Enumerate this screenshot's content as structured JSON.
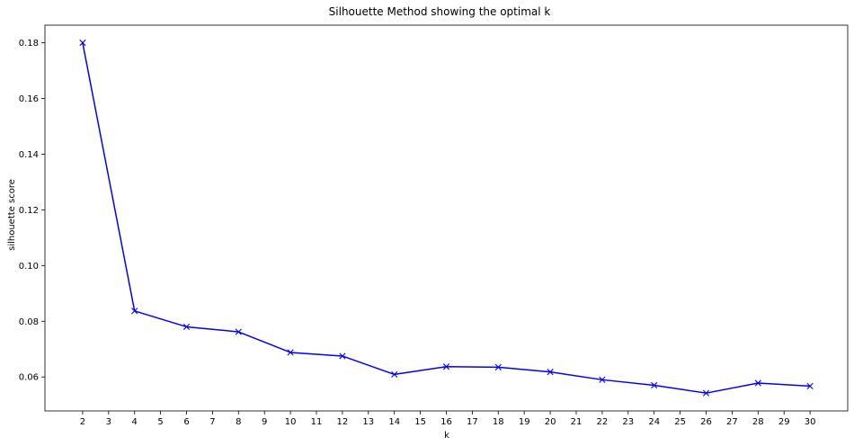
{
  "chart_data": {
    "type": "line",
    "title": "Silhouette Method showing the optimal k",
    "xlabel": "k",
    "ylabel": "silhouette score",
    "x_ticks": [
      2,
      3,
      4,
      5,
      6,
      7,
      8,
      9,
      10,
      11,
      12,
      13,
      14,
      15,
      16,
      17,
      18,
      19,
      20,
      21,
      22,
      23,
      24,
      25,
      26,
      27,
      28,
      29,
      30
    ],
    "y_ticks": [
      0.06,
      0.08,
      0.1,
      0.12,
      0.14,
      0.16,
      0.18
    ],
    "y_tick_labels": [
      "0.06",
      "0.08",
      "0.10",
      "0.12",
      "0.14",
      "0.16",
      "0.18"
    ],
    "xlim": [
      0.55,
      31.45
    ],
    "ylim": [
      0.0478,
      0.1863
    ],
    "grid": false,
    "series": [
      {
        "marker": "x",
        "color": "#0000ff",
        "x": [
          2,
          4,
          6,
          8,
          10,
          12,
          14,
          16,
          18,
          20,
          22,
          24,
          26,
          28,
          30
        ],
        "y": [
          0.18,
          0.0837,
          0.078,
          0.0762,
          0.0688,
          0.0675,
          0.0609,
          0.0637,
          0.0635,
          0.0618,
          0.059,
          0.057,
          0.0542,
          0.0578,
          0.0567
        ]
      }
    ]
  }
}
